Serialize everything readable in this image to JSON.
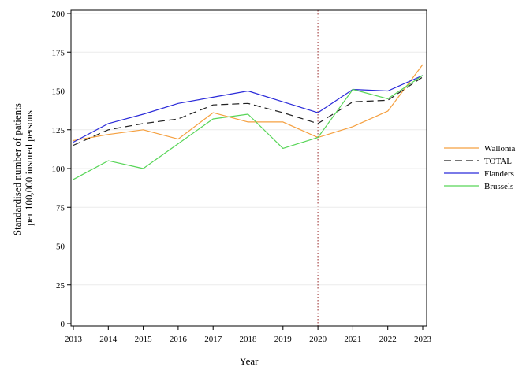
{
  "chart_data": {
    "type": "line",
    "x": [
      2013,
      2014,
      2015,
      2016,
      2017,
      2018,
      2019,
      2020,
      2021,
      2022,
      2023
    ],
    "series": [
      {
        "name": "Wallonia",
        "color": "#f5a040",
        "dash": "solid",
        "values": [
          118,
          122,
          125,
          119,
          136,
          130,
          130,
          120,
          127,
          137,
          167
        ]
      },
      {
        "name": "TOTAL",
        "color": "#222222",
        "dash": "dashed",
        "values": [
          115,
          125,
          129,
          132,
          141,
          142,
          136,
          129,
          143,
          144,
          159
        ]
      },
      {
        "name": "Flanders",
        "color": "#2b2bd9",
        "dash": "solid",
        "values": [
          117,
          129,
          135,
          142,
          146,
          150,
          143,
          136,
          151,
          150,
          160
        ]
      },
      {
        "name": "Brussels",
        "color": "#58d558",
        "dash": "solid",
        "values": [
          93,
          105,
          100,
          116,
          132,
          135,
          113,
          120,
          151,
          145,
          160
        ]
      }
    ],
    "xlabel": "Year",
    "ylabel": [
      "Standardised number of patients",
      "per 100,000 insured persons"
    ],
    "xlim": [
      2013,
      2023
    ],
    "ylim": [
      0,
      200
    ],
    "yticks": [
      0,
      25,
      50,
      75,
      100,
      125,
      150,
      175,
      200
    ],
    "xticks": [
      2013,
      2014,
      2015,
      2016,
      2017,
      2018,
      2019,
      2020,
      2021,
      2022,
      2023
    ],
    "grid": "horizontal",
    "reference_line": {
      "x": 2020,
      "color": "#b05a5a",
      "style": "dotted"
    },
    "legend_position": "right"
  }
}
